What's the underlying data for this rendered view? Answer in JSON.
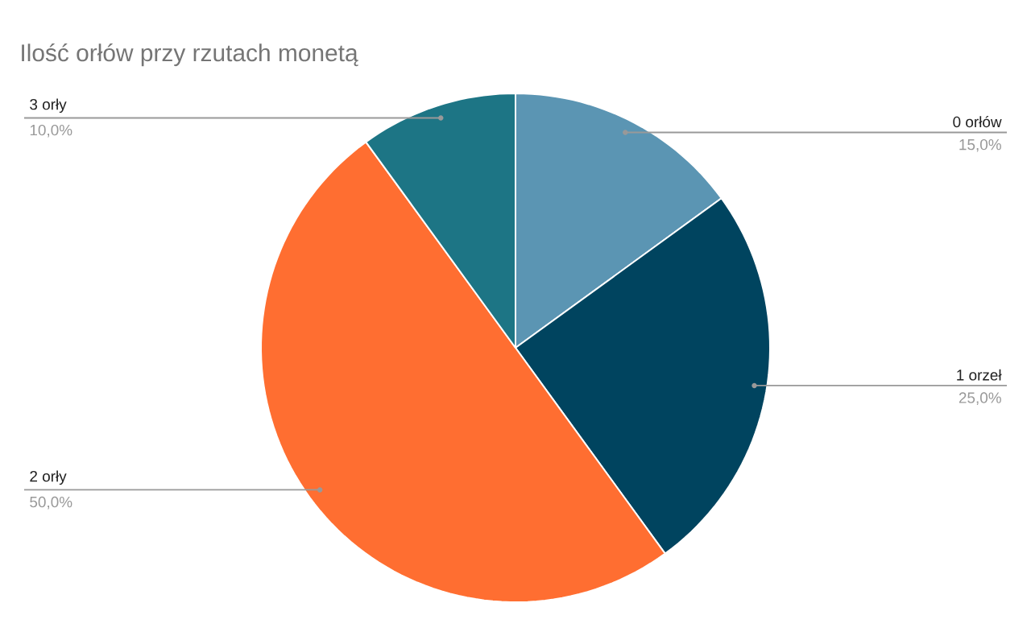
{
  "chart_data": {
    "type": "pie",
    "title": "Ilość orłów przy rzutach monetą",
    "categories": [
      "0 orłów",
      "1 orzeł",
      "2 orły",
      "3 orły"
    ],
    "values": [
      15,
      25,
      50,
      10
    ],
    "colors": [
      "#5b95b3",
      "#00445f",
      "#ff6e31",
      "#1d7585"
    ],
    "value_labels": [
      "15,0%",
      "25,0%",
      "50,0%",
      "10,0%"
    ]
  }
}
